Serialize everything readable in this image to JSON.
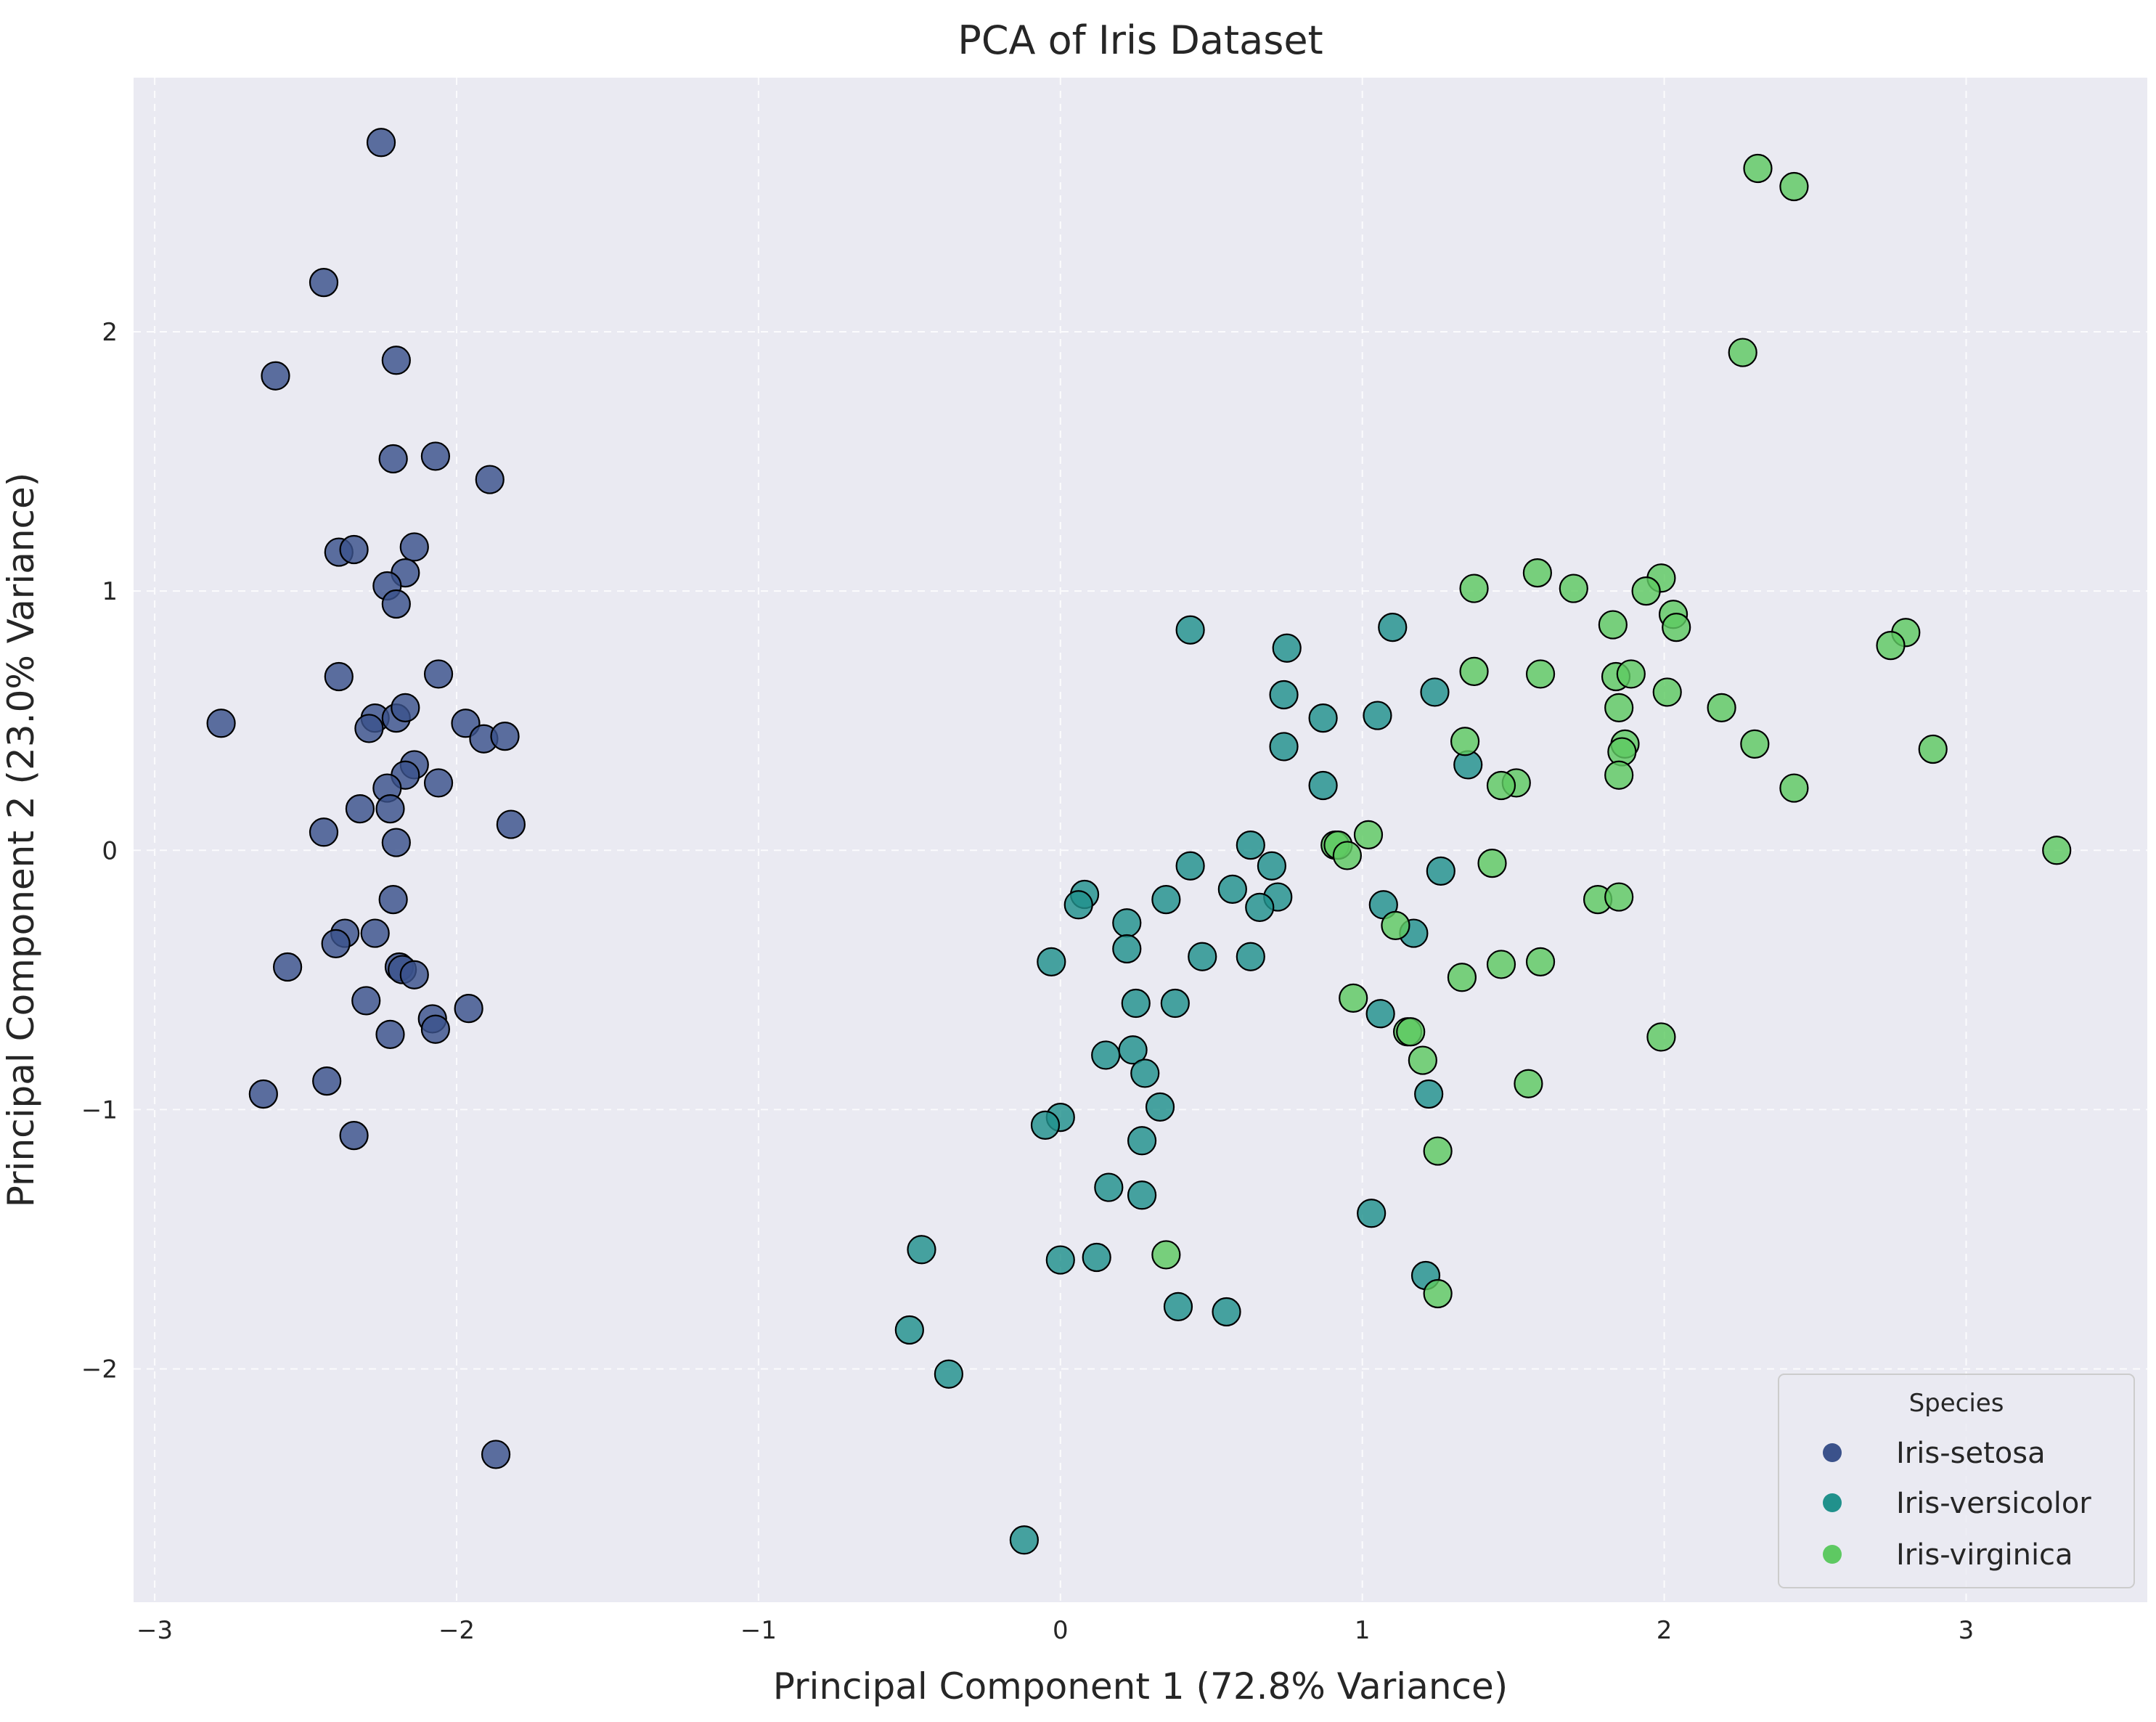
{
  "chart_data": {
    "type": "scatter",
    "title": "PCA of Iris Dataset",
    "xlabel": "Principal Component 1 (72.8% Variance)",
    "ylabel": "Principal Component 2 (23.0% Variance)",
    "xlim": [
      -3.07,
      3.6
    ],
    "ylim": [
      -2.9,
      2.98
    ],
    "x_ticks": [
      -3,
      -2,
      -1,
      0,
      1,
      2,
      3
    ],
    "x_tick_labels": [
      "−3",
      "−2",
      "−1",
      "0",
      "1",
      "2",
      "3"
    ],
    "y_ticks": [
      -2,
      -1,
      0,
      1,
      2
    ],
    "y_tick_labels": [
      "−2",
      "−1",
      "0",
      "1",
      "2"
    ],
    "grid": true,
    "background_color": "#eaeaf2",
    "legend": {
      "title": "Species",
      "placement": "bottom-right"
    },
    "series": [
      {
        "name": "Iris-setosa",
        "color": "#3b528b",
        "points": [
          [
            -2.25,
            2.73
          ],
          [
            -2.44,
            2.19
          ],
          [
            -2.6,
            1.83
          ],
          [
            -2.2,
            1.89
          ],
          [
            -2.21,
            1.51
          ],
          [
            -2.07,
            1.52
          ],
          [
            -1.89,
            1.43
          ],
          [
            -2.39,
            1.15
          ],
          [
            -2.34,
            1.16
          ],
          [
            -2.14,
            1.17
          ],
          [
            -2.17,
            1.07
          ],
          [
            -2.23,
            1.02
          ],
          [
            -2.2,
            0.95
          ],
          [
            -2.39,
            0.67
          ],
          [
            -2.06,
            0.68
          ],
          [
            -2.78,
            0.49
          ],
          [
            -2.27,
            0.51
          ],
          [
            -2.2,
            0.51
          ],
          [
            -2.17,
            0.55
          ],
          [
            -1.97,
            0.49
          ],
          [
            -2.29,
            0.47
          ],
          [
            -1.91,
            0.43
          ],
          [
            -1.84,
            0.44
          ],
          [
            -2.14,
            0.33
          ],
          [
            -2.17,
            0.29
          ],
          [
            -2.23,
            0.24
          ],
          [
            -2.06,
            0.26
          ],
          [
            -2.32,
            0.16
          ],
          [
            -2.22,
            0.16
          ],
          [
            -2.44,
            0.07
          ],
          [
            -2.2,
            0.03
          ],
          [
            -1.82,
            0.1
          ],
          [
            -2.21,
            -0.19
          ],
          [
            -2.37,
            -0.32
          ],
          [
            -2.27,
            -0.32
          ],
          [
            -2.4,
            -0.36
          ],
          [
            -2.56,
            -0.45
          ],
          [
            -2.19,
            -0.45
          ],
          [
            -2.18,
            -0.46
          ],
          [
            -2.14,
            -0.48
          ],
          [
            -2.3,
            -0.58
          ],
          [
            -1.96,
            -0.61
          ],
          [
            -2.22,
            -0.71
          ],
          [
            -2.08,
            -0.65
          ],
          [
            -2.07,
            -0.69
          ],
          [
            -2.43,
            -0.89
          ],
          [
            -2.64,
            -0.94
          ],
          [
            -2.34,
            -1.1
          ],
          [
            -1.87,
            -2.33
          ]
        ]
      },
      {
        "name": "Iris-versicolor",
        "color": "#21918c",
        "points": [
          [
            0.43,
            0.85
          ],
          [
            1.1,
            0.86
          ],
          [
            0.75,
            0.78
          ],
          [
            0.74,
            0.6
          ],
          [
            1.24,
            0.61
          ],
          [
            0.87,
            0.51
          ],
          [
            1.05,
            0.52
          ],
          [
            0.74,
            0.4
          ],
          [
            1.35,
            0.33
          ],
          [
            0.87,
            0.25
          ],
          [
            0.63,
            0.02
          ],
          [
            0.43,
            -0.06
          ],
          [
            0.7,
            -0.06
          ],
          [
            0.57,
            -0.15
          ],
          [
            0.72,
            -0.18
          ],
          [
            0.66,
            -0.22
          ],
          [
            1.26,
            -0.08
          ],
          [
            0.08,
            -0.17
          ],
          [
            0.06,
            -0.21
          ],
          [
            0.35,
            -0.19
          ],
          [
            0.22,
            -0.28
          ],
          [
            0.22,
            -0.38
          ],
          [
            -0.03,
            -0.43
          ],
          [
            0.47,
            -0.41
          ],
          [
            0.63,
            -0.41
          ],
          [
            1.07,
            -0.21
          ],
          [
            1.17,
            -0.32
          ],
          [
            0.25,
            -0.59
          ],
          [
            0.38,
            -0.59
          ],
          [
            1.06,
            -0.63
          ],
          [
            0.15,
            -0.79
          ],
          [
            0.24,
            -0.77
          ],
          [
            0.28,
            -0.86
          ],
          [
            1.22,
            -0.94
          ],
          [
            0.33,
            -0.99
          ],
          [
            0.0,
            -1.03
          ],
          [
            -0.05,
            -1.06
          ],
          [
            0.27,
            -1.12
          ],
          [
            0.16,
            -1.3
          ],
          [
            0.27,
            -1.33
          ],
          [
            1.03,
            -1.4
          ],
          [
            0.0,
            -1.58
          ],
          [
            0.12,
            -1.57
          ],
          [
            -0.46,
            -1.54
          ],
          [
            1.21,
            -1.64
          ],
          [
            0.39,
            -1.76
          ],
          [
            0.55,
            -1.78
          ],
          [
            -0.5,
            -1.85
          ],
          [
            -0.37,
            -2.02
          ],
          [
            -0.12,
            -2.66
          ]
        ]
      },
      {
        "name": "Iris-virginica",
        "color": "#5ec962",
        "points": [
          [
            2.31,
            2.63
          ],
          [
            2.43,
            2.56
          ],
          [
            2.26,
            1.92
          ],
          [
            1.58,
            1.07
          ],
          [
            1.99,
            1.05
          ],
          [
            1.37,
            1.01
          ],
          [
            1.7,
            1.01
          ],
          [
            1.94,
            1.0
          ],
          [
            2.03,
            0.91
          ],
          [
            1.83,
            0.87
          ],
          [
            2.04,
            0.86
          ],
          [
            2.8,
            0.84
          ],
          [
            2.75,
            0.79
          ],
          [
            1.37,
            0.69
          ],
          [
            1.59,
            0.68
          ],
          [
            1.84,
            0.67
          ],
          [
            1.89,
            0.68
          ],
          [
            2.01,
            0.61
          ],
          [
            1.85,
            0.55
          ],
          [
            2.19,
            0.55
          ],
          [
            1.34,
            0.42
          ],
          [
            2.3,
            0.41
          ],
          [
            1.87,
            0.41
          ],
          [
            1.86,
            0.38
          ],
          [
            2.89,
            0.39
          ],
          [
            1.85,
            0.29
          ],
          [
            1.51,
            0.26
          ],
          [
            1.46,
            0.25
          ],
          [
            2.43,
            0.24
          ],
          [
            1.02,
            0.06
          ],
          [
            0.91,
            0.02
          ],
          [
            0.92,
            0.02
          ],
          [
            0.95,
            -0.02
          ],
          [
            3.3,
            0.0
          ],
          [
            1.43,
            -0.05
          ],
          [
            1.78,
            -0.19
          ],
          [
            1.85,
            -0.18
          ],
          [
            1.11,
            -0.29
          ],
          [
            1.46,
            -0.44
          ],
          [
            1.59,
            -0.43
          ],
          [
            1.33,
            -0.49
          ],
          [
            0.97,
            -0.57
          ],
          [
            1.15,
            -0.7
          ],
          [
            1.16,
            -0.7
          ],
          [
            1.99,
            -0.72
          ],
          [
            1.2,
            -0.81
          ],
          [
            1.55,
            -0.9
          ],
          [
            1.25,
            -1.16
          ],
          [
            0.35,
            -1.56
          ],
          [
            1.25,
            -1.71
          ]
        ]
      }
    ]
  }
}
